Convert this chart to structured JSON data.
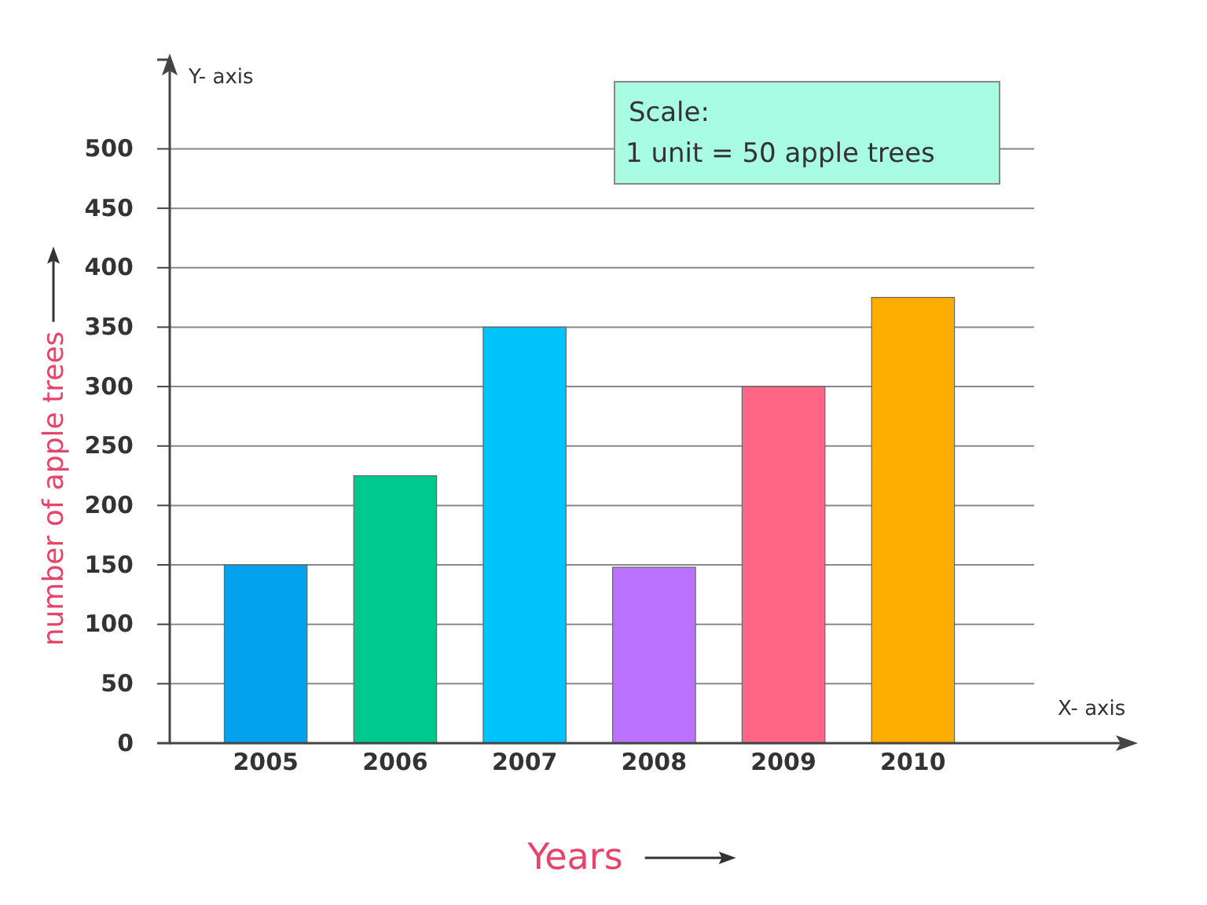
{
  "chart_data": {
    "type": "bar",
    "xlabel": "Years",
    "ylabel": "number of apple trees",
    "categories": [
      "2005",
      "2006",
      "2007",
      "2008",
      "2009",
      "2010"
    ],
    "values": [
      150,
      225,
      350,
      148,
      300,
      375
    ],
    "colors": [
      "#03a1ee",
      "#00c98f",
      "#00c3fc",
      "#bb72fc",
      "#ff6584",
      "#ffad00"
    ],
    "ylim": [
      0,
      575
    ],
    "yticks": [
      0,
      50,
      100,
      150,
      200,
      250,
      300,
      350,
      400,
      450,
      500
    ],
    "grid": "y",
    "annotations": [
      "Y- axis",
      "X- axis",
      "Scale:",
      "1 unit =  50 apple trees"
    ]
  }
}
